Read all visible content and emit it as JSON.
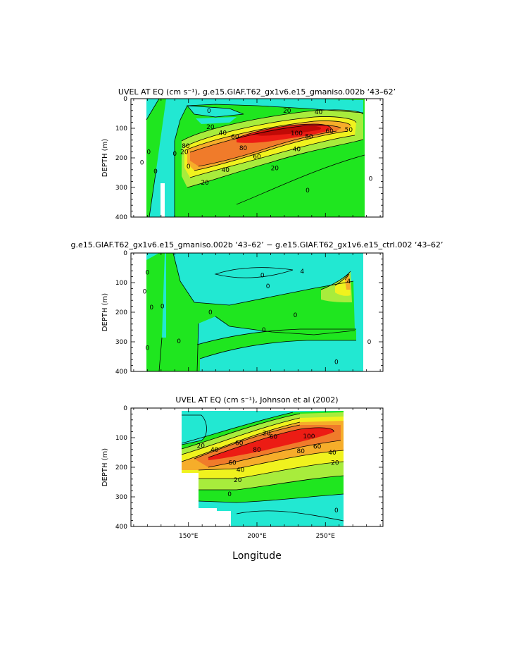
{
  "colors": {
    "lvl_neg": "#22e8d2",
    "lvl_zero": "#1fe61f",
    "lvl_20": "#a8ec3c",
    "lvl_40": "#f0f21e",
    "lvl_60": "#f6ad2a",
    "lvl_80": "#f07b2a",
    "lvl_100": "#ec1c14",
    "missing": "#ffffff",
    "line": "#000000"
  },
  "x_axis": {
    "label": "Longitude",
    "range": [
      108,
      292
    ],
    "tick_labels": [
      {
        "value": 150,
        "label": "150°E"
      },
      {
        "value": 200,
        "label": "200°E"
      },
      {
        "value": 250,
        "label": "250°E"
      }
    ]
  },
  "chart_data": [
    {
      "type": "contour",
      "title": "UVEL AT EQ (cm s⁻¹), g.e15.GIAF.T62_gx1v6.e15_gmaniso.002b ‘43–62’",
      "xlabel": "",
      "ylabel": "DEPTH (m)",
      "xlim": [
        108,
        292
      ],
      "ylim": [
        400,
        0
      ],
      "y_ticks": [
        0,
        100,
        200,
        300,
        400
      ],
      "grid": false,
      "contour_labels": [
        {
          "x": 165,
          "y": 40,
          "text": "0"
        },
        {
          "x": 222,
          "y": 40,
          "text": "20"
        },
        {
          "x": 245,
          "y": 45,
          "text": "40"
        },
        {
          "x": 166,
          "y": 95,
          "text": "20"
        },
        {
          "x": 175,
          "y": 115,
          "text": "40"
        },
        {
          "x": 184,
          "y": 128,
          "text": "60"
        },
        {
          "x": 229,
          "y": 117,
          "text": "100"
        },
        {
          "x": 238,
          "y": 127,
          "text": "80"
        },
        {
          "x": 253,
          "y": 110,
          "text": "60"
        },
        {
          "x": 267,
          "y": 105,
          "text": "50"
        },
        {
          "x": 190,
          "y": 167,
          "text": "80"
        },
        {
          "x": 200,
          "y": 195,
          "text": "60"
        },
        {
          "x": 229,
          "y": 170,
          "text": "40"
        },
        {
          "x": 177,
          "y": 240,
          "text": "40"
        },
        {
          "x": 213,
          "y": 235,
          "text": "20"
        },
        {
          "x": 162,
          "y": 283,
          "text": "20"
        },
        {
          "x": 148,
          "y": 160,
          "text": "80"
        },
        {
          "x": 147,
          "y": 180,
          "text": "20"
        },
        {
          "x": 150,
          "y": 228,
          "text": "0"
        },
        {
          "x": 121,
          "y": 180,
          "text": "0"
        },
        {
          "x": 116,
          "y": 215,
          "text": "0"
        },
        {
          "x": 126,
          "y": 245,
          "text": "0"
        },
        {
          "x": 140,
          "y": 186,
          "text": "0"
        },
        {
          "x": 237,
          "y": 310,
          "text": "0"
        },
        {
          "x": 283,
          "y": 270,
          "text": "0"
        }
      ]
    },
    {
      "type": "contour",
      "title": "g.e15.GIAF.T62_gx1v6.e15_gmaniso.002b ‘43–62’ − g.e15.GIAF.T62_gx1v6.e15_ctrl.002 ‘43–62’",
      "xlabel": "",
      "ylabel": "DEPTH (m)",
      "xlim": [
        108,
        292
      ],
      "ylim": [
        400,
        0
      ],
      "y_ticks": [
        0,
        100,
        200,
        300,
        400
      ],
      "grid": false,
      "contour_labels": [
        {
          "x": 233,
          "y": 62,
          "text": "4"
        },
        {
          "x": 204,
          "y": 75,
          "text": "0"
        },
        {
          "x": 208,
          "y": 112,
          "text": "0"
        },
        {
          "x": 120,
          "y": 65,
          "text": "0"
        },
        {
          "x": 118,
          "y": 130,
          "text": "0"
        },
        {
          "x": 123,
          "y": 183,
          "text": "0"
        },
        {
          "x": 131,
          "y": 180,
          "text": "0"
        },
        {
          "x": 166,
          "y": 200,
          "text": "0"
        },
        {
          "x": 228,
          "y": 210,
          "text": "0"
        },
        {
          "x": 205,
          "y": 260,
          "text": "0"
        },
        {
          "x": 258,
          "y": 368,
          "text": "0"
        },
        {
          "x": 282,
          "y": 300,
          "text": "0"
        },
        {
          "x": 120,
          "y": 320,
          "text": "0"
        },
        {
          "x": 143,
          "y": 298,
          "text": "0"
        },
        {
          "x": 267,
          "y": 95,
          "text": "4"
        }
      ]
    },
    {
      "type": "contour",
      "title": "UVEL AT EQ (cm s⁻¹), Johnson et al (2002)",
      "xlabel": "Longitude",
      "ylabel": "DEPTH (m)",
      "xlim": [
        108,
        292
      ],
      "ylim": [
        400,
        0
      ],
      "y_ticks": [
        0,
        100,
        200,
        300,
        400
      ],
      "grid": false,
      "contour_labels": [
        {
          "x": 159,
          "y": 127,
          "text": "20"
        },
        {
          "x": 169,
          "y": 140,
          "text": "40"
        },
        {
          "x": 187,
          "y": 118,
          "text": "60"
        },
        {
          "x": 207,
          "y": 85,
          "text": "20"
        },
        {
          "x": 212,
          "y": 96,
          "text": "60"
        },
        {
          "x": 238,
          "y": 95,
          "text": "100"
        },
        {
          "x": 200,
          "y": 140,
          "text": "80"
        },
        {
          "x": 232,
          "y": 145,
          "text": "80"
        },
        {
          "x": 244,
          "y": 130,
          "text": "60"
        },
        {
          "x": 255,
          "y": 150,
          "text": "40"
        },
        {
          "x": 182,
          "y": 185,
          "text": "60"
        },
        {
          "x": 188,
          "y": 208,
          "text": "40"
        },
        {
          "x": 186,
          "y": 243,
          "text": "20"
        },
        {
          "x": 257,
          "y": 185,
          "text": "20"
        },
        {
          "x": 180,
          "y": 290,
          "text": "0"
        },
        {
          "x": 258,
          "y": 345,
          "text": "0"
        }
      ]
    }
  ]
}
